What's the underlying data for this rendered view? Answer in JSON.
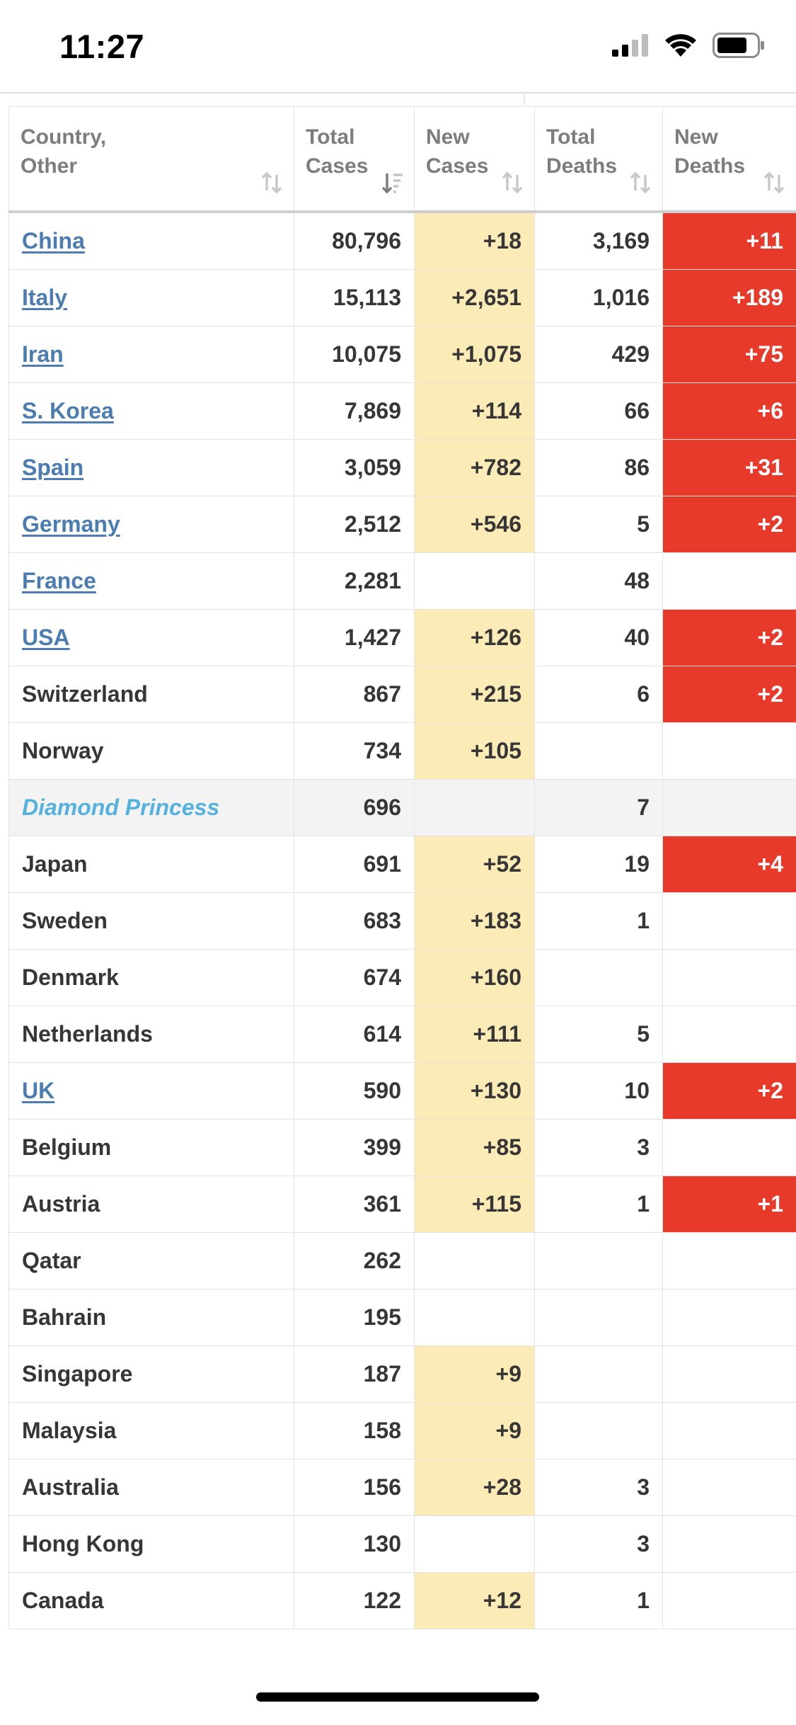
{
  "status_bar": {
    "time": "11:27",
    "icons": [
      "cellular-signal-icon",
      "wifi-icon",
      "battery-icon"
    ]
  },
  "table": {
    "headers": [
      {
        "line1": "Country,",
        "line2": "Other"
      },
      {
        "line1": "Total",
        "line2": "Cases",
        "sorted": "descending"
      },
      {
        "line1": "New",
        "line2": "Cases"
      },
      {
        "line1": "Total",
        "line2": "Deaths"
      },
      {
        "line1": "New",
        "line2": "Deaths"
      }
    ],
    "rows": [
      {
        "country": "China",
        "link": true,
        "total_cases": "80,796",
        "new_cases": "+18",
        "total_deaths": "3,169",
        "new_deaths": "+11"
      },
      {
        "country": "Italy",
        "link": true,
        "total_cases": "15,113",
        "new_cases": "+2,651",
        "total_deaths": "1,016",
        "new_deaths": "+189"
      },
      {
        "country": "Iran",
        "link": true,
        "total_cases": "10,075",
        "new_cases": "+1,075",
        "total_deaths": "429",
        "new_deaths": "+75"
      },
      {
        "country": "S. Korea",
        "link": true,
        "total_cases": "7,869",
        "new_cases": "+114",
        "total_deaths": "66",
        "new_deaths": "+6"
      },
      {
        "country": "Spain",
        "link": true,
        "total_cases": "3,059",
        "new_cases": "+782",
        "total_deaths": "86",
        "new_deaths": "+31"
      },
      {
        "country": "Germany",
        "link": true,
        "total_cases": "2,512",
        "new_cases": "+546",
        "total_deaths": "5",
        "new_deaths": "+2"
      },
      {
        "country": "France",
        "link": true,
        "total_cases": "2,281",
        "new_cases": "",
        "total_deaths": "48",
        "new_deaths": ""
      },
      {
        "country": "USA",
        "link": true,
        "total_cases": "1,427",
        "new_cases": "+126",
        "total_deaths": "40",
        "new_deaths": "+2"
      },
      {
        "country": "Switzerland",
        "link": false,
        "total_cases": "867",
        "new_cases": "+215",
        "total_deaths": "6",
        "new_deaths": "+2"
      },
      {
        "country": "Norway",
        "link": false,
        "total_cases": "734",
        "new_cases": "+105",
        "total_deaths": "",
        "new_deaths": ""
      },
      {
        "country": "Diamond Princess",
        "link": false,
        "ship": true,
        "total_cases": "696",
        "new_cases": "",
        "total_deaths": "7",
        "new_deaths": ""
      },
      {
        "country": "Japan",
        "link": false,
        "total_cases": "691",
        "new_cases": "+52",
        "total_deaths": "19",
        "new_deaths": "+4"
      },
      {
        "country": "Sweden",
        "link": false,
        "total_cases": "683",
        "new_cases": "+183",
        "total_deaths": "1",
        "new_deaths": ""
      },
      {
        "country": "Denmark",
        "link": false,
        "total_cases": "674",
        "new_cases": "+160",
        "total_deaths": "",
        "new_deaths": ""
      },
      {
        "country": "Netherlands",
        "link": false,
        "total_cases": "614",
        "new_cases": "+111",
        "total_deaths": "5",
        "new_deaths": ""
      },
      {
        "country": "UK",
        "link": true,
        "total_cases": "590",
        "new_cases": "+130",
        "total_deaths": "10",
        "new_deaths": "+2"
      },
      {
        "country": "Belgium",
        "link": false,
        "total_cases": "399",
        "new_cases": "+85",
        "total_deaths": "3",
        "new_deaths": ""
      },
      {
        "country": "Austria",
        "link": false,
        "total_cases": "361",
        "new_cases": "+115",
        "total_deaths": "1",
        "new_deaths": "+1"
      },
      {
        "country": "Qatar",
        "link": false,
        "total_cases": "262",
        "new_cases": "",
        "total_deaths": "",
        "new_deaths": ""
      },
      {
        "country": "Bahrain",
        "link": false,
        "total_cases": "195",
        "new_cases": "",
        "total_deaths": "",
        "new_deaths": ""
      },
      {
        "country": "Singapore",
        "link": false,
        "total_cases": "187",
        "new_cases": "+9",
        "total_deaths": "",
        "new_deaths": ""
      },
      {
        "country": "Malaysia",
        "link": false,
        "total_cases": "158",
        "new_cases": "+9",
        "total_deaths": "",
        "new_deaths": ""
      },
      {
        "country": "Australia",
        "link": false,
        "total_cases": "156",
        "new_cases": "+28",
        "total_deaths": "3",
        "new_deaths": ""
      },
      {
        "country": "Hong Kong",
        "link": false,
        "total_cases": "130",
        "new_cases": "",
        "total_deaths": "3",
        "new_deaths": ""
      },
      {
        "country": "Canada",
        "link": false,
        "total_cases": "122",
        "new_cases": "+12",
        "total_deaths": "1",
        "new_deaths": ""
      }
    ]
  },
  "colors": {
    "new_cases_highlight": "#fbecb7",
    "new_deaths_highlight": "#e83a2a",
    "link": "#4c7db2",
    "ship_link": "#55b1de"
  }
}
